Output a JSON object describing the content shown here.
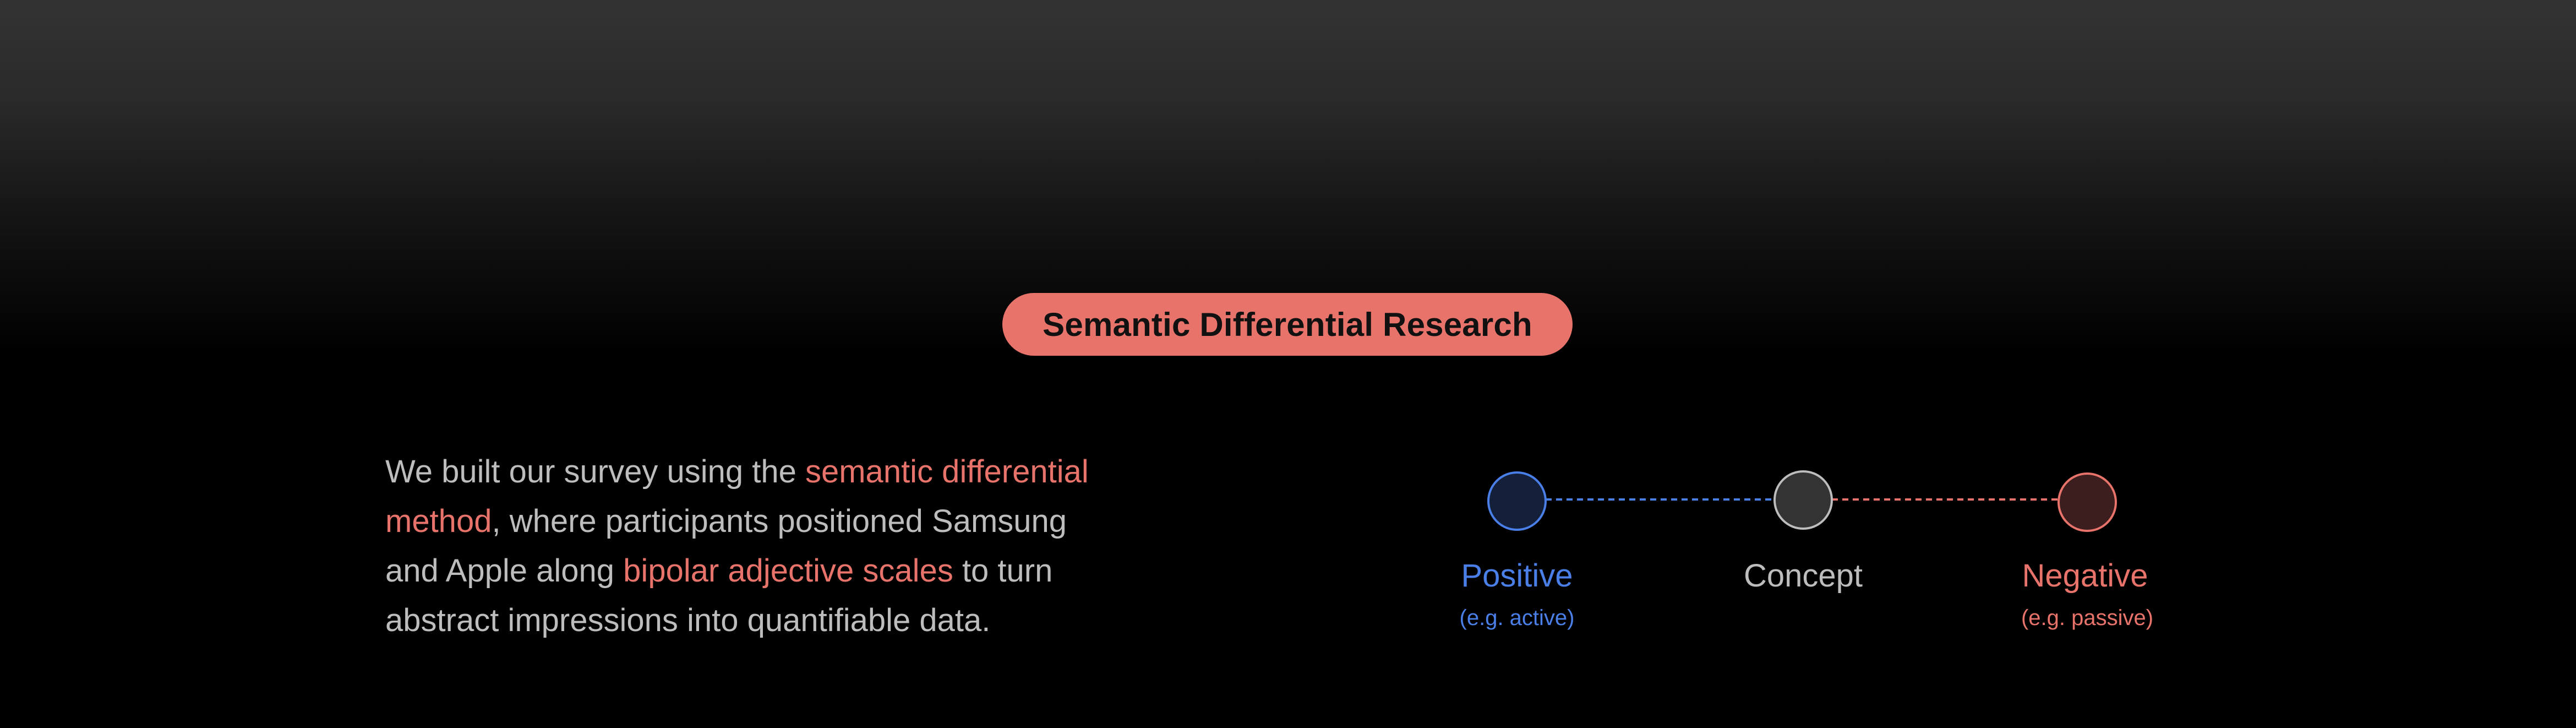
{
  "colors": {
    "accent_red": "#E8736B",
    "accent_blue": "#4A7FE8",
    "text_gray": "#BDBDBD",
    "neutral_circle": "#333333",
    "positive_circle_fill": "#14203A",
    "negative_circle_fill": "#3D1E1E",
    "badge_text": "#111111"
  },
  "badge": {
    "label": "Semantic Differential Research"
  },
  "description": {
    "segments": [
      {
        "text": "We built our survey using the ",
        "highlight": false
      },
      {
        "text": "semantic differential",
        "highlight": true
      },
      {
        "text": "method",
        "highlight": true
      },
      {
        "text": ", where participants positioned Samsung",
        "highlight": false
      },
      {
        "text": "and Apple along ",
        "highlight": false
      },
      {
        "text": "bipolar adjective scales",
        "highlight": true
      },
      {
        "text": " to turn",
        "highlight": false
      },
      {
        "text": "abstract impressions into quantifiable data.",
        "highlight": false
      }
    ]
  },
  "scale": {
    "positive": {
      "label": "Positive",
      "example": "(e.g. active)"
    },
    "concept": {
      "label": "Concept"
    },
    "negative": {
      "label": "Negative",
      "example": "(e.g. passive)"
    }
  }
}
